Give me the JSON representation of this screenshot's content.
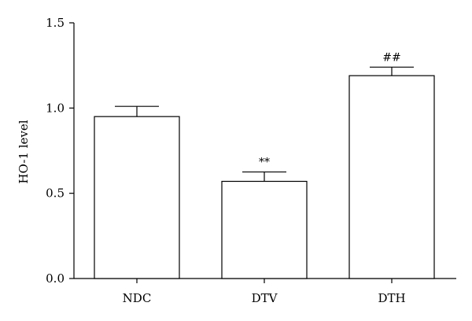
{
  "chart_data": {
    "type": "bar",
    "title": "",
    "xlabel": "",
    "ylabel": "HO-1 level",
    "ylim": [
      0,
      1.5
    ],
    "yticks": [
      "0.0",
      "0.5",
      "1.0",
      "1.5"
    ],
    "categories": [
      "NDC",
      "DTV",
      "DTH"
    ],
    "values": [
      0.95,
      0.57,
      1.19
    ],
    "errors": [
      0.06,
      0.055,
      0.05
    ],
    "annotations": [
      "",
      "**",
      "##"
    ],
    "grid": false,
    "bar_fill": "#ffffff",
    "bar_stroke": "#000000"
  }
}
